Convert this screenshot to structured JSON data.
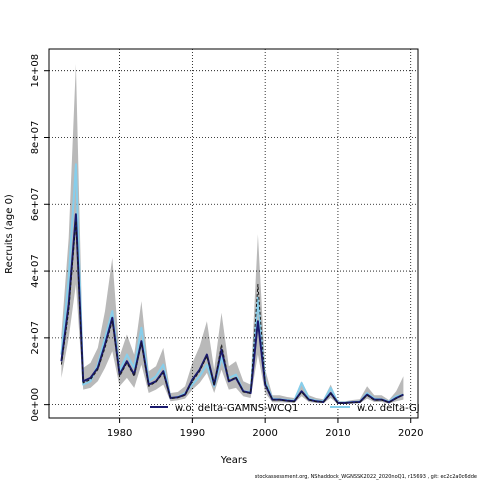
{
  "chart_data": {
    "type": "line",
    "xlabel": "Years",
    "ylabel": "Recruits (age 0)",
    "xlim": [
      1970.3,
      2021
    ],
    "ylim": [
      -4000000,
      106500000
    ],
    "x_ticks": [
      1980,
      1990,
      2000,
      2010,
      2020
    ],
    "x_tick_labels": [
      "1980",
      "1990",
      "2000",
      "2010",
      "2020"
    ],
    "y_ticks": [
      0,
      20000000,
      40000000,
      60000000,
      80000000,
      100000000
    ],
    "y_tick_labels": [
      "0e+00",
      "2e+07",
      "4e+07",
      "6e+07",
      "8e+07",
      "1e+08"
    ],
    "grid": true,
    "legend_position": "bottom",
    "credit": "stockassessment.org, NShaddock_WGNSSK2022_2020noQ1, r15693 , git: ec2c2a0c6dde",
    "x": [
      1972,
      1973,
      1974,
      1975,
      1976,
      1977,
      1978,
      1979,
      1980,
      1981,
      1982,
      1983,
      1984,
      1985,
      1986,
      1987,
      1988,
      1989,
      1990,
      1991,
      1992,
      1993,
      1994,
      1995,
      1996,
      1997,
      1998,
      1999,
      2000,
      2001,
      2002,
      2003,
      2004,
      2005,
      2006,
      2007,
      2008,
      2009,
      2010,
      2011,
      2012,
      2013,
      2014,
      2015,
      2016,
      2017,
      2018,
      2019
    ],
    "series": [
      {
        "name": "w.o. delta-GAMNS-WCQ1",
        "color": "#1a1a6e",
        "values": [
          13000000,
          30000000,
          57000000,
          7000000,
          8000000,
          11000000,
          18000000,
          26000000,
          9000000,
          13000000,
          9000000,
          19000000,
          6000000,
          7000000,
          10000000,
          2000000,
          2200000,
          3000000,
          7500000,
          10500000,
          15000000,
          6000000,
          16500000,
          7000000,
          8000000,
          4000000,
          3500000,
          25000000,
          6000000,
          1500000,
          1500000,
          1200000,
          1000000,
          4000000,
          1500000,
          1000000,
          800000,
          3500000,
          500000,
          500000,
          700000,
          800000,
          3000000,
          1500000,
          1500000,
          700000,
          2000000,
          3000000
        ],
        "lower": [
          8000000,
          20000000,
          36000000,
          4500000,
          5000000,
          7000000,
          11000000,
          16000000,
          5500000,
          8000000,
          5000000,
          12000000,
          3500000,
          4500000,
          6000000,
          1000000,
          1300000,
          1800000,
          4500000,
          6500000,
          9500000,
          3500000,
          10500000,
          4500000,
          5000000,
          2500000,
          2000000,
          15000000,
          3500000,
          700000,
          700000,
          600000,
          500000,
          2500000,
          800000,
          500000,
          400000,
          2000000,
          200000,
          200000,
          300000,
          400000,
          1800000,
          800000,
          800000,
          300000,
          1000000,
          1500000
        ],
        "upper": [
          21000000,
          50000000,
          102000000,
          11000000,
          12500000,
          17000000,
          28000000,
          44000000,
          14500000,
          21000000,
          15000000,
          31000000,
          10000000,
          11500000,
          17000000,
          3500000,
          3800000,
          5500000,
          12500000,
          17500000,
          25000000,
          10500000,
          27500000,
          11500000,
          13000000,
          7000000,
          6000000,
          51000000,
          10500000,
          2800000,
          2800000,
          2300000,
          2000000,
          7000000,
          2800000,
          2000000,
          1600000,
          6000000,
          1000000,
          1000000,
          1400000,
          1600000,
          5500000,
          2800000,
          2800000,
          1400000,
          4000000,
          8500000
        ]
      },
      {
        "name": "w.o. delta-GJ",
        "color": "#87ceeb",
        "values": [
          15000000,
          38000000,
          72000000,
          6000000,
          7000000,
          12000000,
          20000000,
          28000000,
          10000000,
          15000000,
          11000000,
          23000000,
          7000000,
          8500000,
          12000000,
          2000000,
          2300000,
          3500000,
          6000000,
          8500000,
          12000000,
          5500000,
          14000000,
          8000000,
          9000000,
          4000000,
          3800000,
          32000000,
          7000000,
          1800000,
          1600000,
          1400000,
          1200000,
          6500000,
          1800000,
          1200000,
          1000000,
          5000000,
          600000,
          600000,
          800000,
          900000,
          3500000,
          1800000,
          1600000,
          900000,
          2500000,
          3000000
        ]
      },
      {
        "name": "",
        "color": "#1a1a1a",
        "dashed": true,
        "values": [
          12000000,
          28000000,
          55000000,
          6500000,
          7500000,
          10500000,
          17000000,
          25000000,
          8500000,
          12500000,
          8500000,
          18500000,
          5500000,
          6800000,
          9500000,
          1800000,
          2100000,
          2800000,
          7000000,
          10000000,
          14500000,
          5800000,
          18000000,
          7200000,
          8200000,
          3800000,
          3400000,
          36000000,
          6500000,
          1400000,
          1400000,
          1100000,
          900000,
          3800000,
          1400000,
          900000,
          700000,
          3300000,
          400000,
          400000,
          600000,
          700000,
          2800000,
          1300000,
          1400000,
          600000,
          1800000,
          3100000
        ]
      }
    ]
  }
}
